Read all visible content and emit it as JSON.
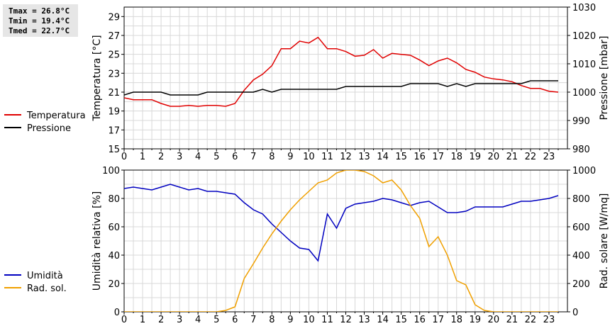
{
  "stats": {
    "tmax": "Tmax = 26.8°C",
    "tmin": "Tmin = 19.4°C",
    "tmed": "Tmed = 22.7°C"
  },
  "chart_data": [
    {
      "type": "line",
      "x_ticks": [
        "0",
        "1",
        "2",
        "3",
        "4",
        "5",
        "6",
        "7",
        "8",
        "9",
        "10",
        "11",
        "12",
        "13",
        "14",
        "15",
        "16",
        "17",
        "18",
        "19",
        "20",
        "21",
        "22",
        "23"
      ],
      "xlim": [
        0,
        24
      ],
      "ylabel": "Temperatura [°C]",
      "ylim": [
        15,
        30
      ],
      "y_ticks": [
        "15",
        "17",
        "19",
        "21",
        "23",
        "25",
        "27",
        "29"
      ],
      "y2label": "Pressione [mbar]",
      "y2lim": [
        980,
        1030
      ],
      "y2_ticks": [
        "980",
        "990",
        "1000",
        "1010",
        "1020",
        "1030"
      ],
      "grid": true,
      "legend": "left",
      "series": [
        {
          "name": "Temperatura",
          "axis": "left",
          "color": "#e00000",
          "x": [
            0,
            0.5,
            1,
            1.5,
            2,
            2.5,
            3,
            3.5,
            4,
            4.5,
            5,
            5.5,
            6,
            6.5,
            7,
            7.5,
            8,
            8.5,
            9,
            9.5,
            10,
            10.5,
            11,
            11.5,
            12,
            12.5,
            13,
            13.5,
            14,
            14.5,
            15,
            15.5,
            16,
            16.5,
            17,
            17.5,
            18,
            18.5,
            19,
            19.5,
            20,
            20.5,
            21,
            21.5,
            22,
            22.5,
            23,
            23.5
          ],
          "values": [
            20.4,
            20.2,
            20.2,
            20.2,
            19.8,
            19.5,
            19.5,
            19.6,
            19.5,
            19.6,
            19.6,
            19.5,
            19.8,
            21.2,
            22.3,
            22.9,
            23.8,
            25.6,
            25.6,
            26.4,
            26.2,
            26.8,
            25.6,
            25.6,
            25.3,
            24.8,
            24.9,
            25.5,
            24.6,
            25.1,
            25.0,
            24.9,
            24.4,
            23.8,
            24.3,
            24.6,
            24.1,
            23.4,
            23.1,
            22.6,
            22.4,
            22.3,
            22.1,
            21.7,
            21.4,
            21.4,
            21.1,
            21.0
          ]
        },
        {
          "name": "Pressione",
          "axis": "right",
          "color": "#000000",
          "x": [
            0,
            0.5,
            1,
            1.5,
            2,
            2.5,
            3,
            3.5,
            4,
            4.5,
            5,
            5.5,
            6,
            6.5,
            7,
            7.5,
            8,
            8.5,
            9,
            9.5,
            10,
            10.5,
            11,
            11.5,
            12,
            12.5,
            13,
            13.5,
            14,
            14.5,
            15,
            15.5,
            16,
            16.5,
            17,
            17.5,
            18,
            18.5,
            19,
            19.5,
            20,
            20.5,
            21,
            21.5,
            22,
            22.5,
            23,
            23.5
          ],
          "values": [
            999,
            1000,
            1000,
            1000,
            1000,
            999,
            999,
            999,
            999,
            1000,
            1000,
            1000,
            1000,
            1000,
            1000,
            1001,
            1000,
            1001,
            1001,
            1001,
            1001,
            1001,
            1001,
            1001,
            1002,
            1002,
            1002,
            1002,
            1002,
            1002,
            1002,
            1003,
            1003,
            1003,
            1003,
            1002,
            1003,
            1002,
            1003,
            1003,
            1003,
            1003,
            1003,
            1003,
            1004,
            1004,
            1004,
            1004
          ]
        }
      ]
    },
    {
      "type": "line",
      "x_ticks": [
        "0",
        "1",
        "2",
        "3",
        "4",
        "5",
        "6",
        "7",
        "8",
        "9",
        "10",
        "11",
        "12",
        "13",
        "14",
        "15",
        "16",
        "17",
        "18",
        "19",
        "20",
        "21",
        "22",
        "23"
      ],
      "xlim": [
        0,
        24
      ],
      "ylabel": "Umidità relativa [%]",
      "ylim": [
        0,
        100
      ],
      "y_ticks": [
        "0",
        "20",
        "40",
        "60",
        "80",
        "100"
      ],
      "y2label": "Rad. solare [W/mq]",
      "y2lim": [
        0,
        1000
      ],
      "y2_ticks": [
        "0",
        "200",
        "400",
        "600",
        "800",
        "1000"
      ],
      "grid": true,
      "legend": "left",
      "series": [
        {
          "name": "Umidità",
          "axis": "left",
          "color": "#0000c0",
          "x": [
            0,
            0.5,
            1,
            1.5,
            2,
            2.5,
            3,
            3.5,
            4,
            4.5,
            5,
            5.5,
            6,
            6.5,
            7,
            7.5,
            8,
            8.5,
            9,
            9.5,
            10,
            10.5,
            11,
            11.5,
            12,
            12.5,
            13,
            13.5,
            14,
            14.5,
            15,
            15.5,
            16,
            16.5,
            17,
            17.5,
            18,
            18.5,
            19,
            19.5,
            20,
            20.5,
            21,
            21.5,
            22,
            22.5,
            23,
            23.5
          ],
          "values": [
            87,
            88,
            87,
            86,
            88,
            90,
            88,
            86,
            87,
            85,
            85,
            84,
            83,
            77,
            72,
            69,
            62,
            56,
            50,
            45,
            44,
            36,
            69,
            59,
            73,
            76,
            77,
            78,
            80,
            79,
            77,
            75,
            77,
            78,
            74,
            70,
            70,
            71,
            74,
            74,
            74,
            74,
            76,
            78,
            78,
            79,
            80,
            82
          ]
        },
        {
          "name": "Rad. sol.",
          "axis": "right",
          "color": "#f0a000",
          "x": [
            0,
            0.5,
            1,
            1.5,
            2,
            2.5,
            3,
            3.5,
            4,
            4.5,
            5,
            5.5,
            6,
            6.5,
            7,
            7.5,
            8,
            8.5,
            9,
            9.5,
            10,
            10.5,
            11,
            11.5,
            12,
            12.5,
            13,
            13.5,
            14,
            14.5,
            15,
            15.5,
            16,
            16.5,
            17,
            17.5,
            18,
            18.5,
            19,
            19.5,
            20,
            20.5,
            21,
            21.5,
            22,
            22.5,
            23,
            23.5
          ],
          "values": [
            0,
            0,
            0,
            0,
            0,
            0,
            0,
            0,
            0,
            0,
            0,
            10,
            35,
            235,
            340,
            450,
            550,
            640,
            720,
            790,
            850,
            910,
            930,
            980,
            1000,
            1000,
            990,
            960,
            910,
            930,
            860,
            750,
            660,
            460,
            530,
            400,
            220,
            190,
            50,
            10,
            0,
            0,
            0,
            0,
            0,
            0,
            0,
            0
          ]
        }
      ]
    }
  ]
}
